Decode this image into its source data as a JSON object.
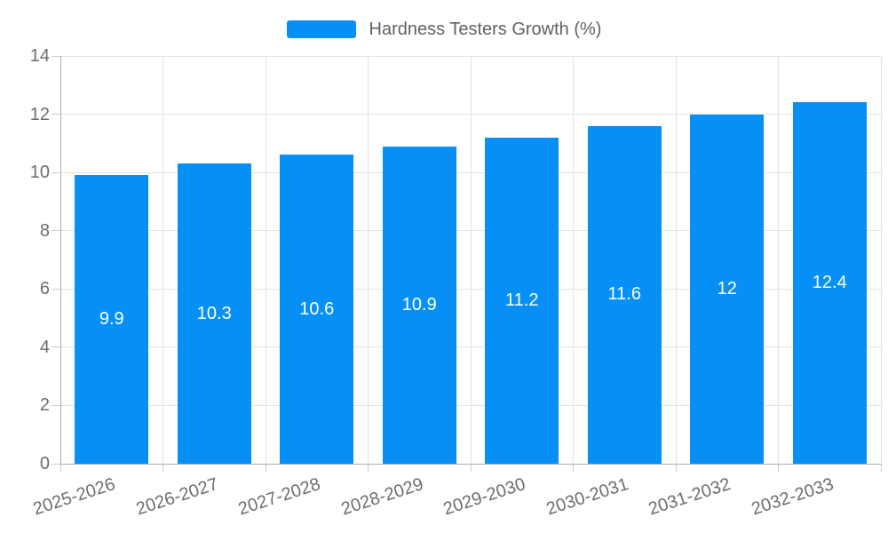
{
  "chart_data": {
    "type": "bar",
    "title": "Hardness Testers Growth (%)",
    "categories": [
      "2025-2026",
      "2026-2027",
      "2027-2028",
      "2028-2029",
      "2029-2030",
      "2030-2031",
      "2031-2032",
      "2032-2033"
    ],
    "values": [
      9.9,
      10.3,
      10.6,
      10.9,
      11.2,
      11.6,
      12,
      12.4
    ],
    "data_labels": [
      "9.9",
      "10.3",
      "10.6",
      "10.9",
      "11.2",
      "11.6",
      "12",
      "12.4"
    ],
    "xlabel": "",
    "ylabel": "",
    "ylim": [
      0,
      14
    ],
    "yticks": [
      0,
      2,
      4,
      6,
      8,
      10,
      12,
      14
    ],
    "grid": true,
    "legend_position": "top",
    "bar_color": "#0690f6",
    "data_label_color": "#ffffff",
    "axis_text_color": "#6e6e6e",
    "gridline_color": "#e3e3e3",
    "axis_line_color": "#adadad"
  }
}
